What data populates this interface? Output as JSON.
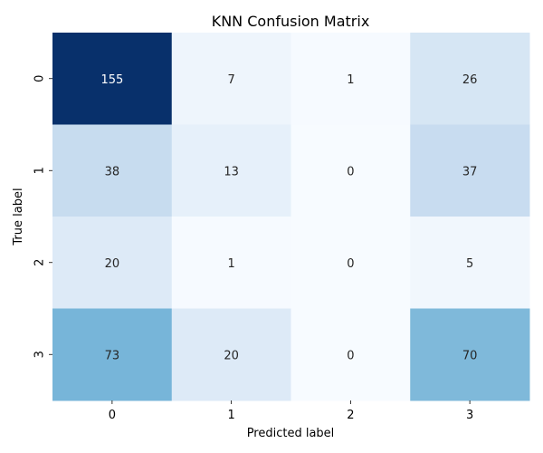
{
  "chart_data": {
    "type": "heatmap",
    "title": "KNN Confusion Matrix",
    "xlabel": "Predicted label",
    "ylabel": "True label",
    "x_categories": [
      "0",
      "1",
      "2",
      "3"
    ],
    "y_categories": [
      "0",
      "1",
      "2",
      "3"
    ],
    "values": [
      [
        155,
        7,
        1,
        26
      ],
      [
        38,
        13,
        0,
        37
      ],
      [
        20,
        1,
        0,
        5
      ],
      [
        73,
        20,
        0,
        70
      ]
    ],
    "colormap": "Blues",
    "colorbar": false,
    "grid": false,
    "value_range": [
      0,
      155
    ]
  }
}
